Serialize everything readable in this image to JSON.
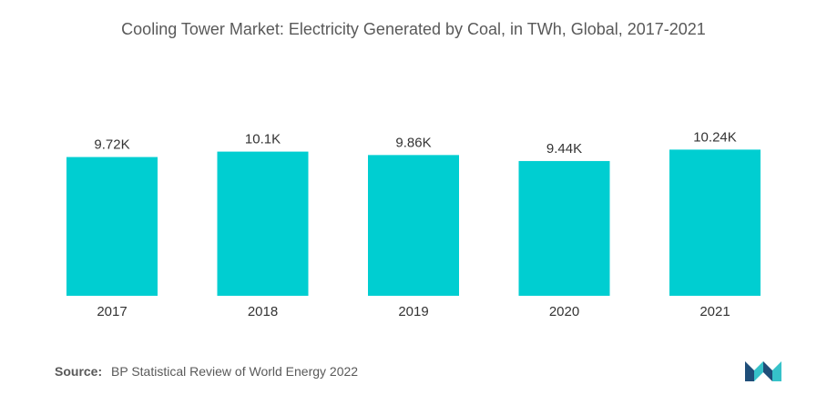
{
  "chart_data": {
    "type": "bar",
    "title": "Cooling Tower Market: Electricity Generated by Coal, in TWh, Global, 2017-2021",
    "categories": [
      "2017",
      "2018",
      "2019",
      "2020",
      "2021"
    ],
    "values": [
      9720,
      10100,
      9860,
      9440,
      10240
    ],
    "value_labels": [
      "9.72K",
      "10.1K",
      "9.86K",
      "9.44K",
      "10.24K"
    ],
    "xlabel": "",
    "ylabel": "",
    "ylim": [
      0,
      10600
    ],
    "grid": false,
    "bar_color": "#00CED1"
  },
  "source": {
    "label": "Source:",
    "text": "BP Statistical Review of World Energy 2022"
  },
  "logo": {
    "icon": "mordor-intelligence-logo-icon",
    "colors": [
      "#1f4e79",
      "#36c2c9"
    ]
  }
}
